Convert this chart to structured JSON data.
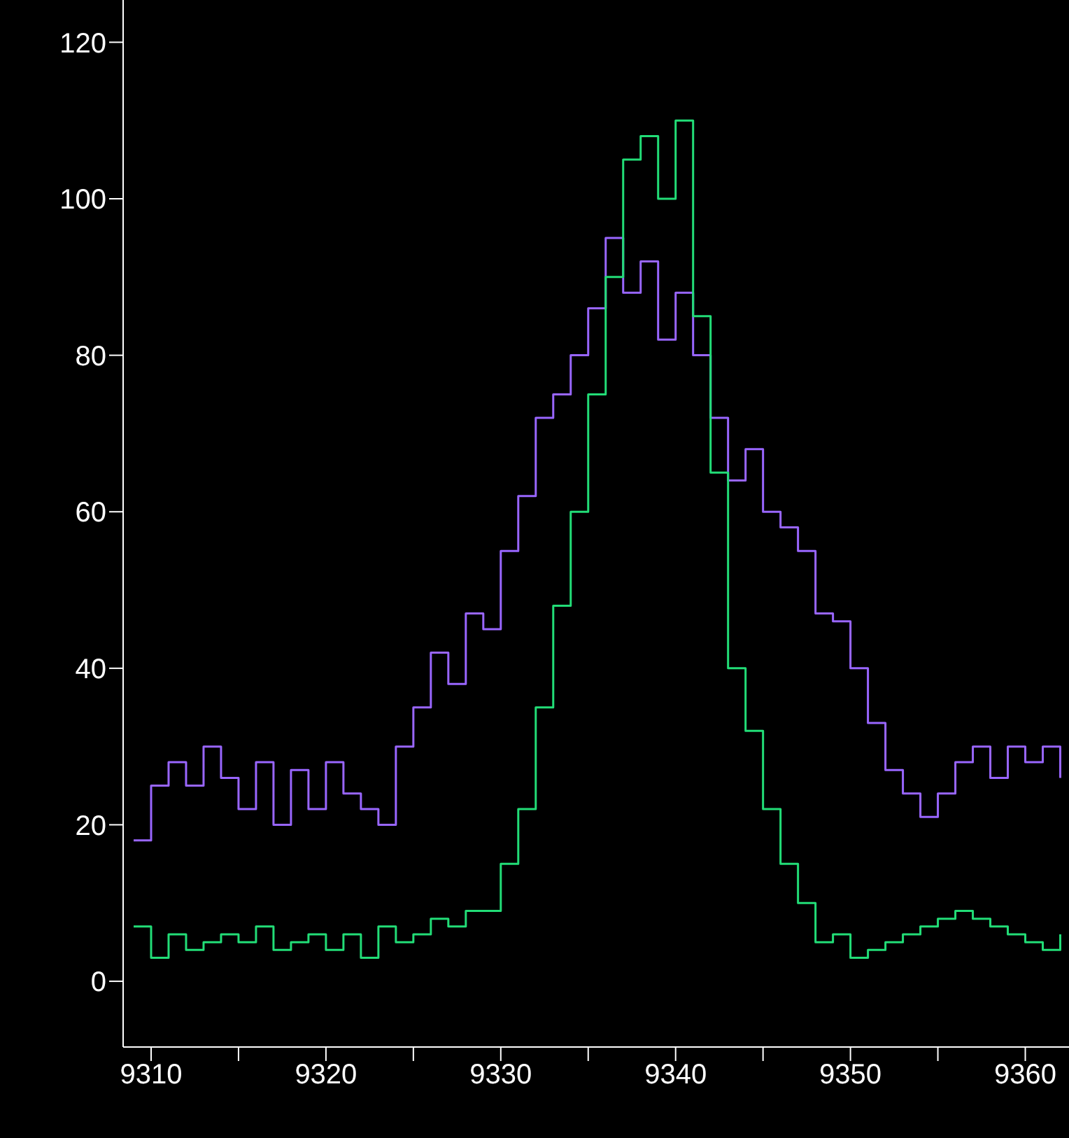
{
  "chart_data": {
    "type": "step",
    "x": [
      9309,
      9310,
      9311,
      9312,
      9313,
      9314,
      9315,
      9316,
      9317,
      9318,
      9319,
      9320,
      9321,
      9322,
      9323,
      9324,
      9325,
      9326,
      9327,
      9328,
      9329,
      9330,
      9331,
      9332,
      9333,
      9334,
      9335,
      9336,
      9337,
      9338,
      9339,
      9340,
      9341,
      9342,
      9343,
      9344,
      9345,
      9346,
      9347,
      9348,
      9349,
      9350,
      9351,
      9352,
      9353,
      9354,
      9355,
      9356,
      9357,
      9358,
      9359,
      9360,
      9361,
      9362
    ],
    "series": [
      {
        "color": "#9966ff",
        "values": [
          18,
          25,
          28,
          25,
          30,
          26,
          22,
          28,
          20,
          27,
          22,
          28,
          24,
          22,
          20,
          30,
          35,
          42,
          38,
          47,
          45,
          55,
          62,
          72,
          75,
          80,
          86,
          95,
          88,
          92,
          82,
          88,
          80,
          72,
          64,
          68,
          60,
          58,
          55,
          47,
          46,
          40,
          33,
          27,
          24,
          21,
          24,
          28,
          30,
          26,
          30,
          28,
          30,
          26
        ]
      },
      {
        "color": "#22dd77",
        "values": [
          7,
          3,
          6,
          4,
          5,
          6,
          5,
          7,
          4,
          5,
          6,
          4,
          6,
          3,
          7,
          5,
          6,
          8,
          7,
          9,
          9,
          15,
          22,
          35,
          48,
          60,
          75,
          90,
          105,
          108,
          100,
          110,
          85,
          65,
          40,
          32,
          22,
          15,
          10,
          5,
          6,
          3,
          4,
          5,
          6,
          7,
          8,
          9,
          8,
          7,
          6,
          5,
          4,
          6
        ]
      }
    ],
    "xlim": [
      9308.4,
      9362.5
    ],
    "ylim": [
      -8.4,
      125.4
    ],
    "xticks": [
      9310,
      {
        "value": 9315,
        "label": null
      },
      9320,
      {
        "value": 9325,
        "label": null
      },
      9330,
      {
        "value": 9335,
        "label": null
      },
      9340,
      {
        "value": 9345,
        "label": null
      },
      9350,
      {
        "value": 9355,
        "label": null
      },
      9360
    ],
    "yticks": [
      0,
      20,
      40,
      60,
      80,
      100,
      120
    ],
    "grid": false,
    "marker": "none",
    "line_style": "solid"
  }
}
